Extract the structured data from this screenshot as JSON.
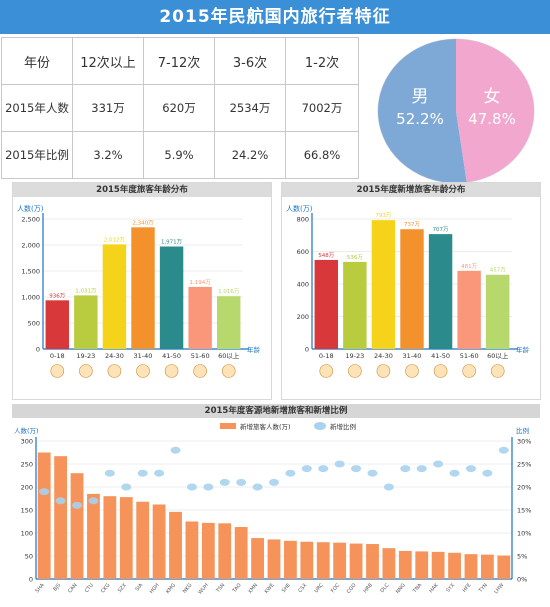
{
  "header": {
    "title": "2015年民航国内旅行者特征"
  },
  "table": {
    "headers": [
      "年份",
      "12次以上",
      "7-12次",
      "3-6次",
      "1-2次"
    ],
    "rows": [
      [
        "2015年人数",
        "331万",
        "620万",
        "2534万",
        "7002万"
      ],
      [
        "2015年比例",
        "3.2%",
        "5.9%",
        "24.2%",
        "66.8%"
      ]
    ]
  },
  "gender": {
    "male_label": "男",
    "male_value": "52.2%",
    "female_label": "女",
    "female_value": "47.8%",
    "male_color": "#7ea8d6",
    "female_color": "#f2a7cf"
  },
  "chart_data": [
    {
      "type": "bar",
      "title": "2015年度旅客年龄分布",
      "ylabel": "人数(万)",
      "xlabel": "年龄",
      "categories": [
        "0-18",
        "19-23",
        "24-30",
        "31-40",
        "41-50",
        "51-60",
        "60以上"
      ],
      "values": [
        936,
        1031,
        2012,
        2340,
        1971,
        1194,
        1016
      ],
      "value_labels": [
        "936万",
        "1,031万",
        "2,012万",
        "2,340万",
        "1,971万",
        "1,194万",
        "1,016万"
      ],
      "colors": [
        "#d8383a",
        "#b9cb3e",
        "#f5d31b",
        "#f3912c",
        "#2b8a8c",
        "#fa977a",
        "#b7d86c"
      ],
      "ylim": [
        0,
        2500
      ],
      "yticks": [
        "0",
        "500",
        "1,000",
        "1,500",
        "2,000",
        "2,500"
      ]
    },
    {
      "type": "bar",
      "title": "2015年度新增旅客年龄分布",
      "ylabel": "人数(万)",
      "xlabel": "年龄",
      "categories": [
        "0-18",
        "19-23",
        "24-30",
        "31-40",
        "41-50",
        "51-60",
        "60以上"
      ],
      "values": [
        548,
        536,
        793,
        737,
        707,
        481,
        457
      ],
      "value_labels": [
        "548万",
        "536万",
        "793万",
        "737万",
        "707万",
        "481万",
        "457万"
      ],
      "colors": [
        "#d8383a",
        "#b9cb3e",
        "#f5d31b",
        "#f3912c",
        "#2b8a8c",
        "#fa977a",
        "#b7d86c"
      ],
      "ylim": [
        0,
        800
      ],
      "yticks": [
        "0",
        "200",
        "400",
        "600",
        "800"
      ]
    },
    {
      "type": "bar",
      "title": "2015年度客源地新增旅客和新增比例",
      "ylabel": "人数(万)",
      "y2label": "比例",
      "legend": [
        "新增旅客人数(万)",
        "新增比例"
      ],
      "legend_placement": "top",
      "categories": [
        "SHA",
        "BJS",
        "CAN",
        "CTU",
        "CKG",
        "SZX",
        "SIA",
        "HGH",
        "KMG",
        "NKG",
        "WUH",
        "TSN",
        "TAO",
        "XMN",
        "KWE",
        "SHE",
        "CSX",
        "URC",
        "FOC",
        "CGO",
        "HRB",
        "DLC",
        "NNG",
        "TNA",
        "HAK",
        "SYX",
        "HFE",
        "TYN",
        "LHW"
      ],
      "values": [
        275,
        267,
        230,
        185,
        180,
        178,
        168,
        162,
        146,
        125,
        122,
        121,
        113,
        89,
        86,
        83,
        81,
        80,
        79,
        77,
        76,
        67,
        61,
        60,
        59,
        57,
        54,
        53,
        51
      ],
      "ratio": [
        19,
        17,
        16,
        17,
        23,
        20,
        23,
        23,
        28,
        20,
        20,
        21,
        21,
        20,
        21,
        23,
        24,
        24,
        25,
        24,
        23,
        20,
        24,
        24,
        25,
        23,
        24,
        23,
        28
      ],
      "bar_color": "#f5935a",
      "dot_color": "#a8d2ee",
      "ylim": [
        0,
        300
      ],
      "yticks": [
        "0",
        "50",
        "100",
        "150",
        "200",
        "250",
        "300"
      ],
      "y2lim": [
        0,
        30
      ],
      "y2ticks": [
        "0%",
        "5%",
        "10%",
        "15%",
        "20%",
        "25%",
        "30%"
      ]
    }
  ]
}
